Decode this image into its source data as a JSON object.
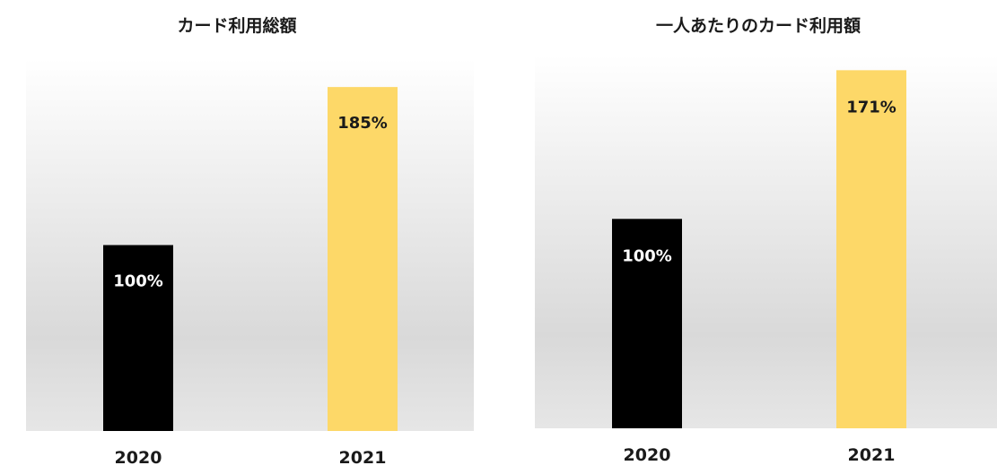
{
  "chart_data": [
    {
      "type": "bar",
      "title": "カード利用総額",
      "categories": [
        "2020",
        "2021"
      ],
      "values": [
        100,
        185
      ],
      "data_labels": [
        "100%",
        "185%"
      ],
      "bar_colors": [
        "#000000",
        "#FDD868"
      ],
      "label_colors": [
        "#ffffff",
        "#1a1a1a"
      ],
      "ylim": [
        0,
        200
      ],
      "grid": false,
      "legend": "none",
      "background": "gradient-gray"
    },
    {
      "type": "bar",
      "title": "一人あたりのカード利用額",
      "categories": [
        "2020",
        "2021"
      ],
      "values": [
        100,
        171
      ],
      "data_labels": [
        "100%",
        "171%"
      ],
      "bar_colors": [
        "#000000",
        "#FDD868"
      ],
      "label_colors": [
        "#ffffff",
        "#1a1a1a"
      ],
      "ylim": [
        0,
        178
      ],
      "grid": false,
      "legend": "none",
      "background": "gradient-gray"
    }
  ]
}
